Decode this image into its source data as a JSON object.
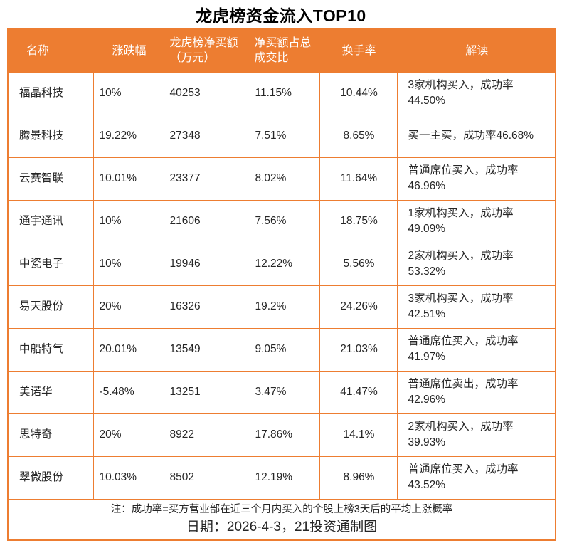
{
  "theme": {
    "accent": "#ED7D31",
    "header_text": "#FFFFFF",
    "body_text": "#262626"
  },
  "chart_data": {
    "type": "table",
    "title": "龙虎榜资金流入TOP10",
    "columns": [
      "名称",
      "涨跌幅",
      "龙虎榜净买额（万元）",
      "净买额占总成交比",
      "换手率",
      "解读"
    ],
    "rows": [
      [
        "福晶科技",
        "10%",
        "40253",
        "11.15%",
        "10.44%",
        "3家机构买入，成功率44.50%"
      ],
      [
        "腾景科技",
        "19.22%",
        "27348",
        "7.51%",
        "8.65%",
        "买一主买，成功率46.68%"
      ],
      [
        "云赛智联",
        "10.01%",
        "23377",
        "8.02%",
        "11.64%",
        "普通席位买入，成功率46.96%"
      ],
      [
        "通宇通讯",
        "10%",
        "21606",
        "7.56%",
        "18.75%",
        "1家机构买入，成功率49.09%"
      ],
      [
        "中瓷电子",
        "10%",
        "19946",
        "12.22%",
        "5.56%",
        "2家机构买入，成功率53.32%"
      ],
      [
        "易天股份",
        "20%",
        "16326",
        "19.2%",
        "24.26%",
        "3家机构买入，成功率42.51%"
      ],
      [
        "中船特气",
        "20.01%",
        "13549",
        "9.05%",
        "21.03%",
        "普通席位买入，成功率41.97%"
      ],
      [
        "美诺华",
        "-5.48%",
        "13251",
        "3.47%",
        "41.47%",
        "普通席位卖出，成功率42.96%"
      ],
      [
        "思特奇",
        "20%",
        "8922",
        "17.86%",
        "14.1%",
        "2家机构买入，成功率39.93%"
      ],
      [
        "翠微股份",
        "10.03%",
        "8502",
        "12.19%",
        "8.96%",
        "普通席位买入，成功率43.52%"
      ]
    ],
    "note": "注：成功率=买方营业部在近三个月内买入的个股上榜3天后的平均上涨概率",
    "date_line": "日期：2026-4-3，21投资通制图"
  }
}
